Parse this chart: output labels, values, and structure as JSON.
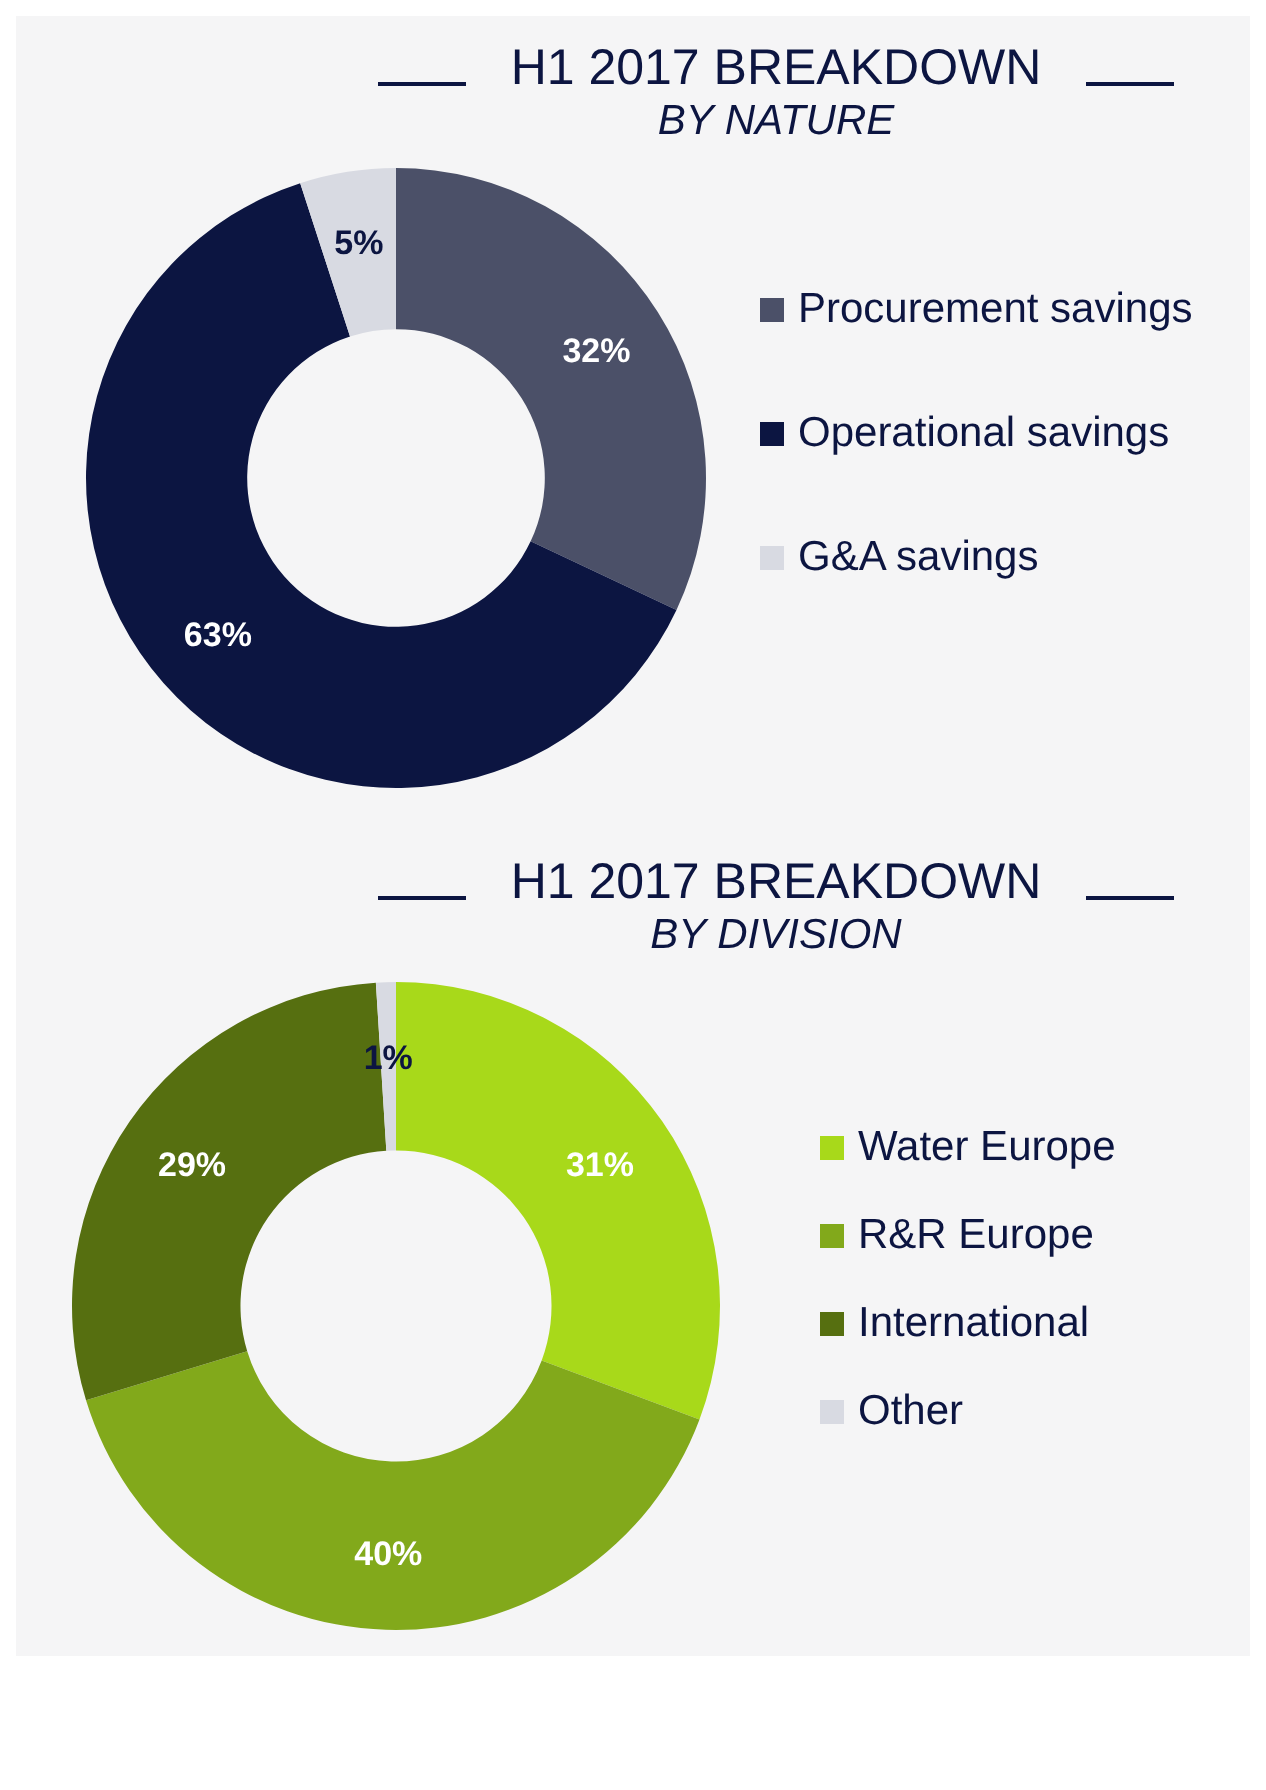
{
  "chart_data": [
    {
      "type": "donut",
      "title": "H1 2017 BREAKDOWN",
      "subtitle": "BY NATURE",
      "categories": [
        "Procurement savings",
        "Operational savings",
        "G&A savings"
      ],
      "values": [
        32,
        63,
        5
      ],
      "value_labels": [
        "32%",
        "63%",
        "5%"
      ],
      "colors": [
        "#4b5068",
        "#0c1541",
        "#d8dae2"
      ],
      "legend": "right"
    },
    {
      "type": "donut",
      "title": "H1 2017 BREAKDOWN",
      "subtitle": "BY DIVISION",
      "categories": [
        "Water Europe",
        "R&R Europe",
        "International",
        "Other"
      ],
      "values": [
        31,
        40,
        29,
        1
      ],
      "value_labels": [
        "31%",
        "40%",
        "29%",
        "1%"
      ],
      "colors": [
        "#a8d91a",
        "#82a91b",
        "#566f10",
        "#d8dae2"
      ],
      "legend": "right"
    }
  ]
}
